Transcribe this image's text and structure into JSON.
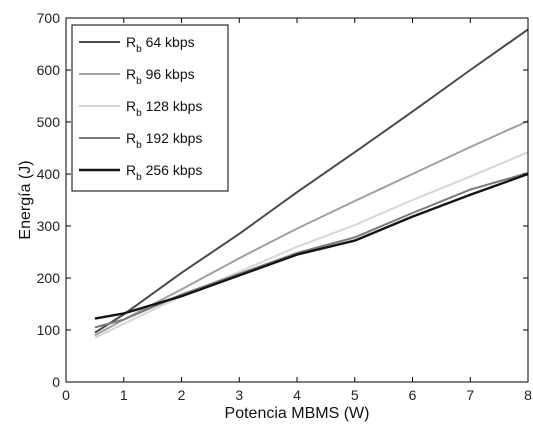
{
  "chart_data": {
    "type": "line",
    "title": "",
    "xlabel": "Potencia MBMS (W)",
    "ylabel": "Energía (J)",
    "xlim": [
      0,
      8
    ],
    "ylim": [
      0,
      700
    ],
    "xticks": [
      "0",
      "1",
      "2",
      "3",
      "4",
      "5",
      "6",
      "7",
      "8"
    ],
    "yticks": [
      "0",
      "100",
      "200",
      "300",
      "400",
      "500",
      "600",
      "700"
    ],
    "grid": false,
    "legend_position": "top-left",
    "series": [
      {
        "name": "64 kbps",
        "legend_main": "R",
        "legend_sub": "b",
        "legend_rest": " 64 kbps",
        "color": "#4a4a4a",
        "x": [
          0.5,
          1,
          2,
          3,
          4,
          5,
          6,
          7,
          8
        ],
        "y": [
          95,
          130,
          210,
          285,
          365,
          442,
          520,
          600,
          678
        ]
      },
      {
        "name": "96 kbps",
        "legend_main": "R",
        "legend_sub": "b",
        "legend_rest": " 96 kbps",
        "color": "#a0a0a0",
        "x": [
          0.5,
          1,
          2,
          3,
          4,
          5,
          6,
          7,
          8
        ],
        "y": [
          90,
          120,
          178,
          238,
          295,
          348,
          400,
          452,
          502
        ]
      },
      {
        "name": "128 kbps",
        "legend_main": "R",
        "legend_sub": "b",
        "legend_rest": " 128 kbps",
        "color": "#d6d6d6",
        "x": [
          0.5,
          1,
          2,
          3,
          4,
          5,
          6,
          7,
          8
        ],
        "y": [
          85,
          112,
          165,
          212,
          260,
          302,
          350,
          395,
          442
        ]
      },
      {
        "name": "192 kbps",
        "legend_main": "R",
        "legend_sub": "b",
        "legend_rest": " 192 kbps",
        "color": "#7a7a7a",
        "x": [
          0.5,
          1,
          2,
          3,
          4,
          5,
          6,
          7,
          8
        ],
        "y": [
          105,
          120,
          168,
          208,
          248,
          278,
          325,
          370,
          402
        ]
      },
      {
        "name": "256 kbps",
        "legend_main": "R",
        "legend_sub": "b",
        "legend_rest": " 256 kbps",
        "color": "#151515",
        "x": [
          0.5,
          1,
          2,
          3,
          4,
          5,
          6,
          7,
          8
        ],
        "y": [
          122,
          132,
          165,
          205,
          245,
          272,
          318,
          360,
          400
        ]
      }
    ]
  }
}
